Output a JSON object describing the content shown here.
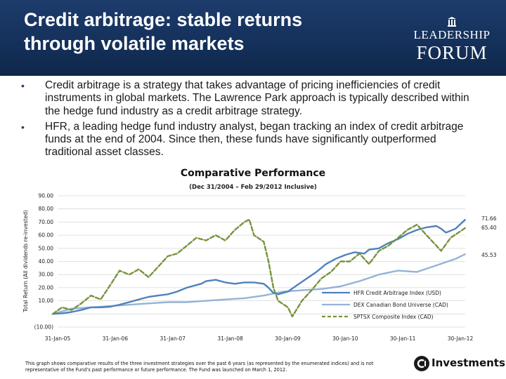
{
  "header": {
    "title": "Credit arbitrage: stable returns through volatile markets",
    "logo_icon": "pillar-icon",
    "logo_line1": "LEADERSHIP",
    "logo_line2": "FORUM",
    "background_color": "#14305a"
  },
  "bullets": [
    {
      "text": "Credit arbitrage is a strategy that takes advantage of pricing inefficiencies of credit instruments in global markets. The Lawrence Park approach is typically described within the hedge fund industry as a credit arbitrage strategy."
    },
    {
      "text": "HFR, a leading hedge fund industry analyst, began tracking an index of credit arbitrage funds at the end of 2004. Since then, these funds have significantly outperformed traditional asset classes."
    }
  ],
  "chart_data": {
    "type": "line",
    "title": "Comparative Performance",
    "subtitle": "(Dec 31/2004 – Feb 29/2012 Inclusive)",
    "ylabel": "Total Return (All dividends re-invested)",
    "ylim": [
      -10,
      90
    ],
    "yticks": [
      -10,
      0,
      10,
      20,
      30,
      40,
      50,
      60,
      70,
      80,
      90
    ],
    "ytick_labels": [
      "(10.00)",
      "-",
      "10.00",
      "20.00",
      "30.00",
      "40.00",
      "50.00",
      "60.00",
      "70.00",
      "80.00",
      "90.00"
    ],
    "xtick_labels": [
      "31-Jan-05",
      "31-Jan-06",
      "31-Jan-07",
      "31-Jan-08",
      "30-Jan-09",
      "30-Jan-10",
      "30-Jan-11",
      "30-Jan-12"
    ],
    "grid": true,
    "legend_position": "bottom-right",
    "series": [
      {
        "name": "HFR Credit Arbitrage Index (USD)",
        "color": "#4f81bd",
        "style": "solid",
        "end_label": "71.66",
        "x": [
          "2004-12-31",
          "2005-02-28",
          "2005-04-30",
          "2005-06-30",
          "2005-08-31",
          "2005-10-31",
          "2005-12-31",
          "2006-02-28",
          "2006-04-30",
          "2006-06-30",
          "2006-08-31",
          "2006-10-31",
          "2006-12-31",
          "2007-02-28",
          "2007-04-30",
          "2007-06-30",
          "2007-07-31",
          "2007-08-31",
          "2007-10-31",
          "2007-12-31",
          "2008-02-29",
          "2008-04-30",
          "2008-06-30",
          "2008-08-31",
          "2008-09-30",
          "2008-10-31",
          "2008-11-30",
          "2008-12-31",
          "2009-01-31",
          "2009-03-31",
          "2009-05-31",
          "2009-07-31",
          "2009-09-30",
          "2009-11-30",
          "2010-01-31",
          "2010-03-31",
          "2010-05-31",
          "2010-06-30",
          "2010-08-31",
          "2010-10-31",
          "2010-12-31",
          "2011-02-28",
          "2011-04-30",
          "2011-06-30",
          "2011-08-31",
          "2011-09-30",
          "2011-10-31",
          "2011-12-31",
          "2012-02-29"
        ],
        "y": [
          0,
          0.5,
          1.5,
          3,
          5,
          5,
          5.5,
          7,
          9,
          11,
          13,
          14,
          15,
          17,
          20,
          22,
          23,
          25,
          26,
          24,
          23,
          24,
          24,
          23,
          20,
          16,
          15,
          16,
          17,
          22,
          27,
          32,
          38,
          42,
          45,
          47,
          46,
          49,
          50,
          54,
          57,
          61,
          64,
          66,
          67,
          65,
          62,
          65,
          71.66
        ]
      },
      {
        "name": "DEX Canadian Bond Universe (CAD)",
        "color": "#95b3d7",
        "style": "solid",
        "end_label": "45.53",
        "x": [
          "2004-12-31",
          "2005-04-30",
          "2005-08-31",
          "2005-12-31",
          "2006-04-30",
          "2006-08-31",
          "2006-12-31",
          "2007-04-30",
          "2007-08-31",
          "2007-12-31",
          "2008-04-30",
          "2008-08-31",
          "2008-12-31",
          "2009-04-30",
          "2009-08-31",
          "2009-12-31",
          "2010-04-30",
          "2010-08-31",
          "2010-12-31",
          "2011-04-30",
          "2011-08-31",
          "2011-12-31",
          "2012-02-29"
        ],
        "y": [
          0,
          4,
          5,
          6,
          7,
          8,
          9,
          9,
          10,
          11,
          12,
          14,
          17,
          18,
          19,
          21,
          25,
          30,
          33,
          32,
          37,
          42,
          45.53
        ]
      },
      {
        "name": "SPTSX Composite Index (CAD)",
        "color": "#77933c",
        "style": "dashed",
        "end_label": "65.40",
        "x": [
          "2004-12-31",
          "2005-02-28",
          "2005-04-30",
          "2005-06-30",
          "2005-08-31",
          "2005-10-31",
          "2005-12-31",
          "2006-02-28",
          "2006-04-30",
          "2006-06-30",
          "2006-08-31",
          "2006-10-31",
          "2006-12-31",
          "2007-02-28",
          "2007-04-30",
          "2007-06-30",
          "2007-08-31",
          "2007-10-31",
          "2007-12-31",
          "2008-02-29",
          "2008-04-30",
          "2008-05-31",
          "2008-06-30",
          "2008-08-31",
          "2008-09-30",
          "2008-10-31",
          "2008-11-30",
          "2009-01-31",
          "2009-02-28",
          "2009-04-30",
          "2009-06-30",
          "2009-08-31",
          "2009-10-31",
          "2009-12-31",
          "2010-02-28",
          "2010-04-30",
          "2010-06-30",
          "2010-08-31",
          "2010-10-31",
          "2010-12-31",
          "2011-02-28",
          "2011-04-30",
          "2011-06-30",
          "2011-08-31",
          "2011-09-30",
          "2011-11-30",
          "2012-02-29"
        ],
        "y": [
          0,
          5,
          3,
          8,
          14,
          11,
          22,
          33,
          30,
          34,
          28,
          36,
          44,
          46,
          52,
          58,
          56,
          60,
          56,
          64,
          70,
          72,
          60,
          55,
          40,
          20,
          10,
          5,
          -2,
          10,
          18,
          27,
          32,
          40,
          40,
          46,
          38,
          48,
          52,
          58,
          64,
          68,
          60,
          52,
          48,
          58,
          65.4
        ]
      }
    ]
  },
  "footnote": "This graph shows comparative results of the three investment strategies over the past 6 years (as represented by the enumerated indices) and is not representative of the Fund's past performance or future performance. The Fund was launched on March 1, 2012.",
  "brand": {
    "icon": "ci-logo-icon",
    "name": "Investments"
  }
}
